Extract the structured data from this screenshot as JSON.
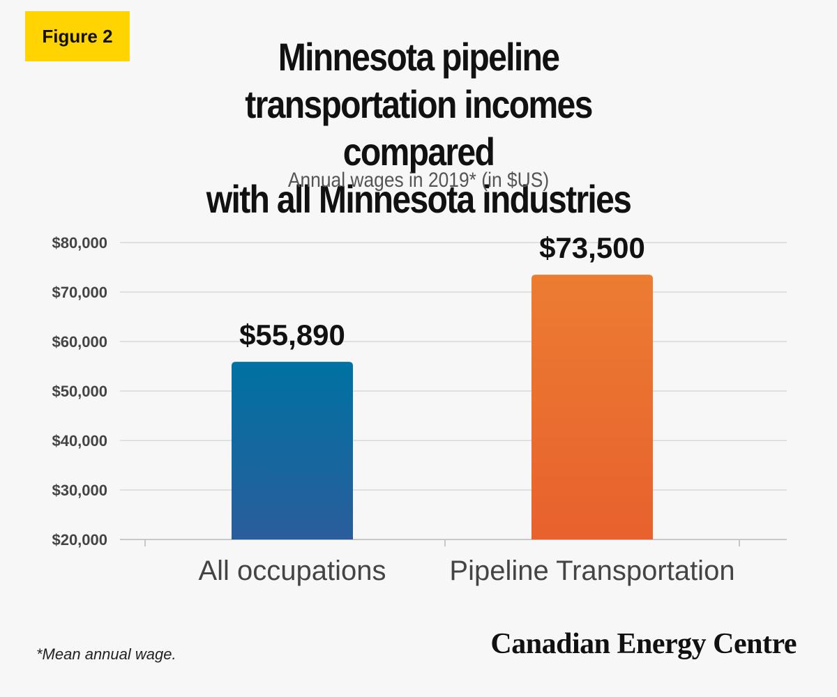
{
  "badge": "Figure 2",
  "title_lines": [
    "Minnesota pipeline",
    "transportation incomes compared",
    "with all Minnesota industries"
  ],
  "subtitle": "Annual wages in 2019* (in $US)",
  "footnote": "*Mean annual wage.",
  "brand": "Canadian Energy Centre",
  "colors": {
    "badge": "#ffd400",
    "bar_all_top": "#0072a3",
    "bar_all_bottom": "#2a5d9b",
    "bar_pipeline_top": "#ec7c32",
    "bar_pipeline_bottom": "#e8612e"
  },
  "chart_data": {
    "type": "bar",
    "categories": [
      "All occupations",
      "Pipeline Transportation"
    ],
    "values": [
      55890,
      73500
    ],
    "value_labels": [
      "$55,890",
      "$73,500"
    ],
    "ylim": [
      20000,
      80000
    ],
    "yticks": [
      20000,
      30000,
      40000,
      50000,
      60000,
      70000,
      80000
    ],
    "ytick_labels": [
      "$20,000",
      "$30,000",
      "$40,000",
      "$50,000",
      "$60,000",
      "$70,000",
      "$80,000"
    ],
    "grid": true,
    "legend": "none"
  }
}
